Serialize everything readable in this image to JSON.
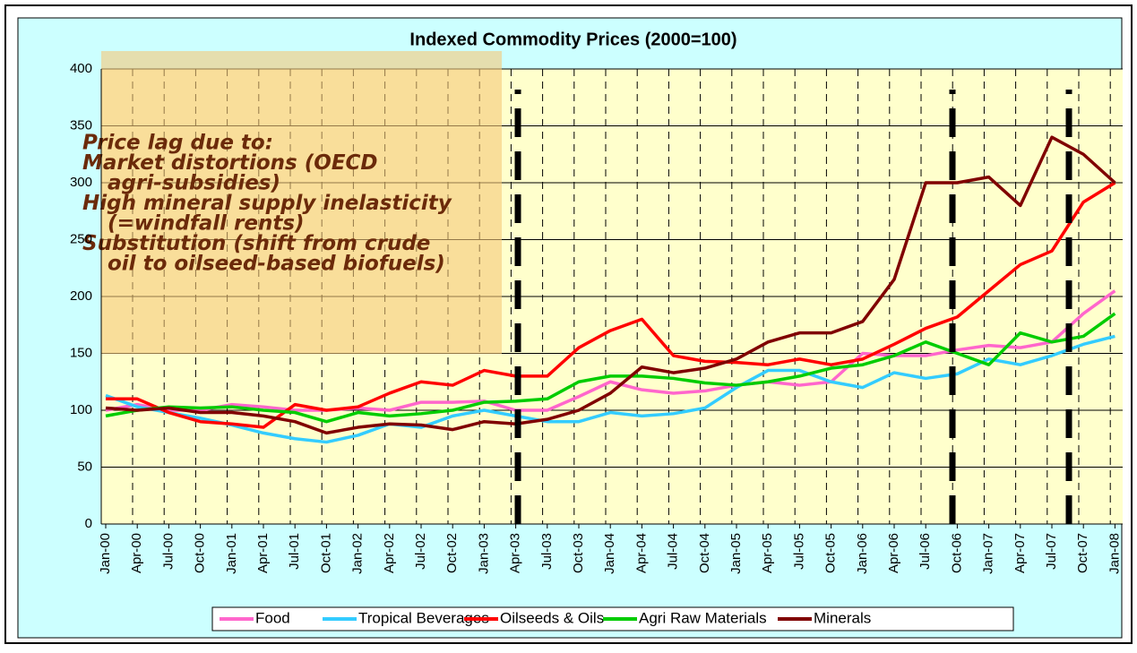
{
  "chart_data": {
    "type": "line",
    "title": "Indexed Commodity Prices (2000=100)",
    "categories": [
      "Jan-00",
      "Apr-00",
      "Jul-00",
      "Oct-00",
      "Jan-01",
      "Apr-01",
      "Jul-01",
      "Oct-01",
      "Jan-02",
      "Apr-02",
      "Jul-02",
      "Oct-02",
      "Jan-03",
      "Apr-03",
      "Jul-03",
      "Oct-03",
      "Jan-04",
      "Apr-04",
      "Jul-04",
      "Oct-04",
      "Jan-05",
      "Apr-05",
      "Jul-05",
      "Oct-05",
      "Jan-06",
      "Apr-06",
      "Jul-06",
      "Oct-06",
      "Jan-07",
      "Apr-07",
      "Jul-07",
      "Oct-07",
      "Jan-08"
    ],
    "series": [
      {
        "name": "Food",
        "color": "#ff66cc",
        "values": [
          100,
          105,
          100,
          100,
          105,
          103,
          100,
          100,
          102,
          100,
          107,
          107,
          108,
          100,
          100,
          112,
          125,
          118,
          115,
          117,
          122,
          125,
          122,
          125,
          150,
          148,
          148,
          153,
          157,
          155,
          160,
          185,
          205
        ]
      },
      {
        "name": "Tropical Beverages",
        "color": "#33ccff",
        "values": [
          113,
          103,
          98,
          93,
          87,
          80,
          75,
          72,
          78,
          88,
          85,
          95,
          100,
          95,
          90,
          90,
          98,
          95,
          97,
          102,
          120,
          135,
          135,
          125,
          120,
          133,
          128,
          132,
          145,
          140,
          148,
          158,
          165
        ]
      },
      {
        "name": "Oilseeds & Oils",
        "color": "#ff0000",
        "values": [
          110,
          110,
          98,
          90,
          88,
          85,
          105,
          100,
          103,
          115,
          125,
          122,
          135,
          130,
          130,
          155,
          170,
          180,
          148,
          143,
          142,
          140,
          145,
          140,
          145,
          158,
          172,
          182,
          205,
          228,
          240,
          283,
          300
        ]
      },
      {
        "name": "Agri Raw Materials",
        "color": "#00cc00",
        "values": [
          95,
          100,
          103,
          102,
          103,
          100,
          98,
          90,
          98,
          95,
          97,
          100,
          107,
          108,
          110,
          125,
          130,
          130,
          128,
          124,
          122,
          125,
          130,
          137,
          140,
          148,
          160,
          150,
          140,
          168,
          160,
          165,
          185
        ]
      },
      {
        "name": "Minerals",
        "color": "#800000",
        "values": [
          102,
          100,
          102,
          98,
          98,
          95,
          90,
          80,
          85,
          88,
          87,
          83,
          90,
          88,
          92,
          100,
          115,
          138,
          133,
          137,
          145,
          160,
          168,
          168,
          178,
          215,
          300,
          300,
          305,
          280,
          340,
          325,
          300
        ]
      }
    ],
    "ylim": [
      0,
      400
    ],
    "yticks": [
      0,
      50,
      100,
      150,
      200,
      250,
      300,
      350,
      400
    ],
    "grid": true,
    "annotation": [
      "Price lag due to:",
      "Market distortions (OECD",
      "agri-subsidies)",
      "High mineral supply inelasticity",
      "(=windfall rents)",
      "Substitution (shift from crude",
      "oil to oilseed-based biofuels)"
    ],
    "legend": "bottom"
  }
}
